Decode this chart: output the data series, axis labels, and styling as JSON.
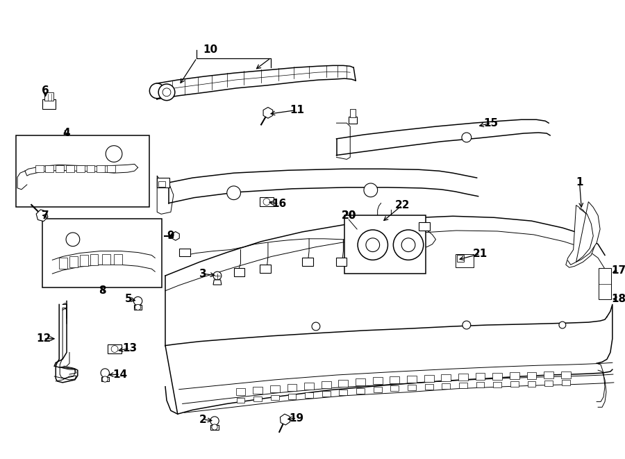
{
  "background_color": "#ffffff",
  "line_color": "#000000",
  "fig_width": 9.0,
  "fig_height": 6.61,
  "dpi": 100,
  "lw_thin": 0.7,
  "lw_med": 1.1,
  "lw_thick": 1.5
}
